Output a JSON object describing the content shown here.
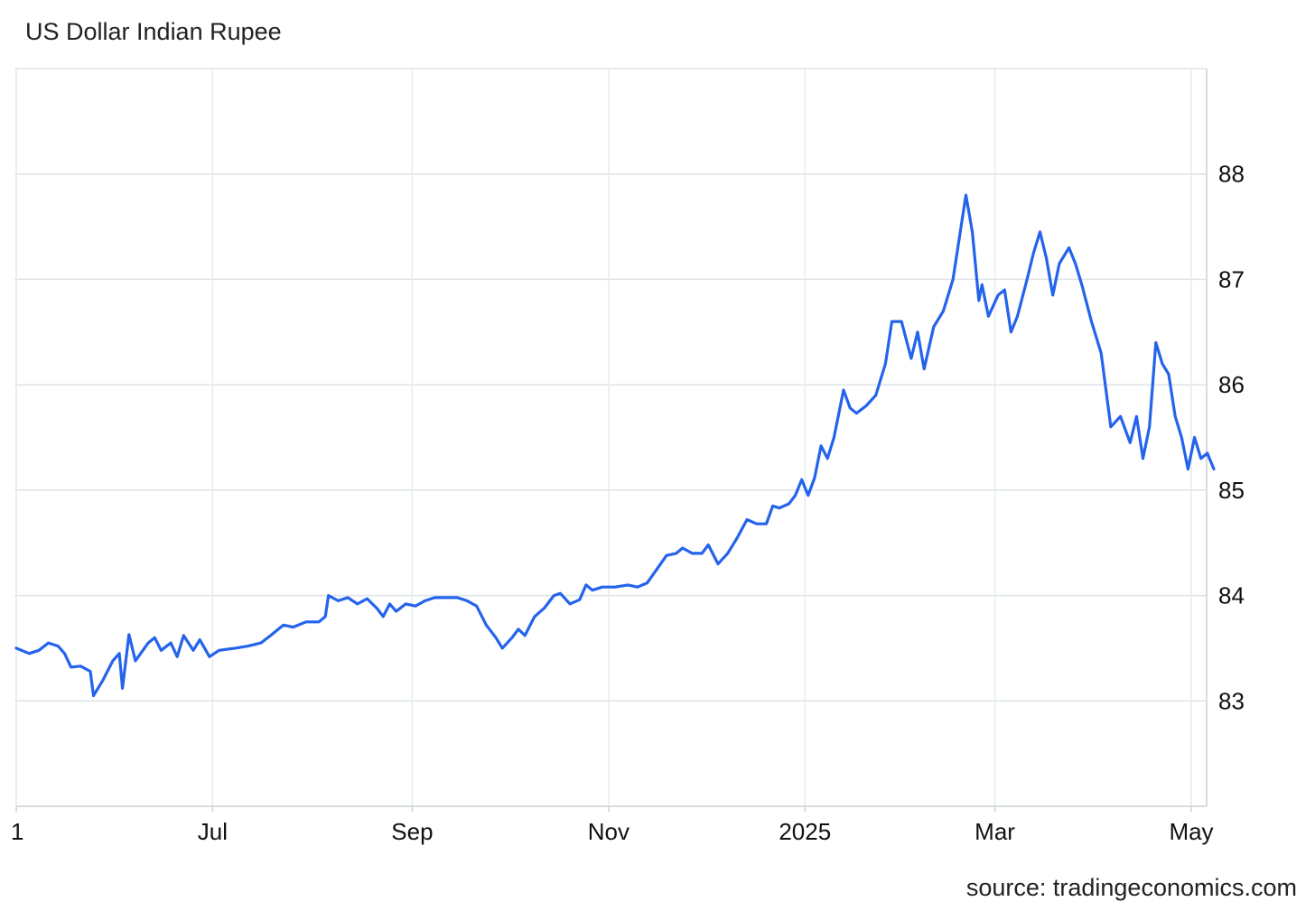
{
  "chart_data": {
    "type": "line",
    "title": "US Dollar Indian Rupee",
    "source": "source: tradingeconomics.com",
    "xlabel": "",
    "ylabel": "",
    "ylim": [
      82,
      89
    ],
    "yticks": [
      83,
      84,
      85,
      86,
      87,
      88
    ],
    "xticks": [
      {
        "label": "1",
        "date": "2024-05-01"
      },
      {
        "label": "Jul",
        "date": "2024-07-01"
      },
      {
        "label": "Sep",
        "date": "2024-09-01"
      },
      {
        "label": "Nov",
        "date": "2024-11-01"
      },
      {
        "label": "2025",
        "date": "2025-01-01"
      },
      {
        "label": "Mar",
        "date": "2025-03-01"
      },
      {
        "label": "May",
        "date": "2025-05-01"
      }
    ],
    "grid": true,
    "line_color": "#2463eb",
    "series": [
      {
        "points": [
          [
            "2024-05-01",
            83.5
          ],
          [
            "2024-05-05",
            83.45
          ],
          [
            "2024-05-08",
            83.48
          ],
          [
            "2024-05-11",
            83.55
          ],
          [
            "2024-05-14",
            83.52
          ],
          [
            "2024-05-16",
            83.45
          ],
          [
            "2024-05-18",
            83.32
          ],
          [
            "2024-05-21",
            83.33
          ],
          [
            "2024-05-24",
            83.28
          ],
          [
            "2024-05-25",
            83.05
          ],
          [
            "2024-05-28",
            83.2
          ],
          [
            "2024-05-31",
            83.38
          ],
          [
            "2024-06-02",
            83.45
          ],
          [
            "2024-06-03",
            83.12
          ],
          [
            "2024-06-05",
            83.63
          ],
          [
            "2024-06-07",
            83.38
          ],
          [
            "2024-06-11",
            83.55
          ],
          [
            "2024-06-13",
            83.6
          ],
          [
            "2024-06-15",
            83.48
          ],
          [
            "2024-06-18",
            83.55
          ],
          [
            "2024-06-20",
            83.42
          ],
          [
            "2024-06-22",
            83.62
          ],
          [
            "2024-06-25",
            83.48
          ],
          [
            "2024-06-27",
            83.58
          ],
          [
            "2024-06-30",
            83.42
          ],
          [
            "2024-07-03",
            83.48
          ],
          [
            "2024-07-08",
            83.5
          ],
          [
            "2024-07-12",
            83.52
          ],
          [
            "2024-07-16",
            83.55
          ],
          [
            "2024-07-19",
            83.62
          ],
          [
            "2024-07-23",
            83.72
          ],
          [
            "2024-07-26",
            83.7
          ],
          [
            "2024-07-30",
            83.75
          ],
          [
            "2024-08-03",
            83.75
          ],
          [
            "2024-08-05",
            83.8
          ],
          [
            "2024-08-06",
            84.0
          ],
          [
            "2024-08-09",
            83.95
          ],
          [
            "2024-08-12",
            83.98
          ],
          [
            "2024-08-15",
            83.92
          ],
          [
            "2024-08-18",
            83.97
          ],
          [
            "2024-08-21",
            83.88
          ],
          [
            "2024-08-23",
            83.8
          ],
          [
            "2024-08-25",
            83.92
          ],
          [
            "2024-08-27",
            83.85
          ],
          [
            "2024-08-30",
            83.92
          ],
          [
            "2024-09-02",
            83.9
          ],
          [
            "2024-09-05",
            83.95
          ],
          [
            "2024-09-08",
            83.98
          ],
          [
            "2024-09-12",
            83.98
          ],
          [
            "2024-09-15",
            83.98
          ],
          [
            "2024-09-18",
            83.95
          ],
          [
            "2024-09-21",
            83.9
          ],
          [
            "2024-09-24",
            83.72
          ],
          [
            "2024-09-27",
            83.6
          ],
          [
            "2024-09-29",
            83.5
          ],
          [
            "2024-10-02",
            83.6
          ],
          [
            "2024-10-04",
            83.68
          ],
          [
            "2024-10-06",
            83.62
          ],
          [
            "2024-10-09",
            83.8
          ],
          [
            "2024-10-12",
            83.88
          ],
          [
            "2024-10-15",
            84.0
          ],
          [
            "2024-10-17",
            84.02
          ],
          [
            "2024-10-20",
            83.92
          ],
          [
            "2024-10-23",
            83.96
          ],
          [
            "2024-10-25",
            84.1
          ],
          [
            "2024-10-27",
            84.05
          ],
          [
            "2024-10-30",
            84.08
          ],
          [
            "2024-11-03",
            84.08
          ],
          [
            "2024-11-07",
            84.1
          ],
          [
            "2024-11-10",
            84.08
          ],
          [
            "2024-11-13",
            84.12
          ],
          [
            "2024-11-16",
            84.25
          ],
          [
            "2024-11-19",
            84.38
          ],
          [
            "2024-11-22",
            84.4
          ],
          [
            "2024-11-24",
            84.45
          ],
          [
            "2024-11-27",
            84.4
          ],
          [
            "2024-11-30",
            84.4
          ],
          [
            "2024-12-02",
            84.48
          ],
          [
            "2024-12-05",
            84.3
          ],
          [
            "2024-12-08",
            84.4
          ],
          [
            "2024-12-11",
            84.55
          ],
          [
            "2024-12-14",
            84.72
          ],
          [
            "2024-12-17",
            84.68
          ],
          [
            "2024-12-20",
            84.68
          ],
          [
            "2024-12-22",
            84.85
          ],
          [
            "2024-12-24",
            84.83
          ],
          [
            "2024-12-27",
            84.87
          ],
          [
            "2024-12-29",
            84.95
          ],
          [
            "2024-12-31",
            85.1
          ],
          [
            "2025-01-02",
            84.95
          ],
          [
            "2025-01-04",
            85.12
          ],
          [
            "2025-01-06",
            85.42
          ],
          [
            "2025-01-08",
            85.3
          ],
          [
            "2025-01-10",
            85.5
          ],
          [
            "2025-01-13",
            85.95
          ],
          [
            "2025-01-15",
            85.78
          ],
          [
            "2025-01-17",
            85.73
          ],
          [
            "2025-01-20",
            85.8
          ],
          [
            "2025-01-23",
            85.9
          ],
          [
            "2025-01-26",
            86.2
          ],
          [
            "2025-01-28",
            86.6
          ],
          [
            "2025-01-31",
            86.6
          ],
          [
            "2025-02-03",
            86.25
          ],
          [
            "2025-02-05",
            86.5
          ],
          [
            "2025-02-07",
            86.15
          ],
          [
            "2025-02-10",
            86.55
          ],
          [
            "2025-02-13",
            86.7
          ],
          [
            "2025-02-16",
            87.0
          ],
          [
            "2025-02-19",
            87.6
          ],
          [
            "2025-02-20",
            87.8
          ],
          [
            "2025-02-22",
            87.45
          ],
          [
            "2025-02-24",
            86.8
          ],
          [
            "2025-02-25",
            86.95
          ],
          [
            "2025-02-27",
            86.65
          ],
          [
            "2025-03-02",
            86.85
          ],
          [
            "2025-03-04",
            86.9
          ],
          [
            "2025-03-06",
            86.5
          ],
          [
            "2025-03-08",
            86.65
          ],
          [
            "2025-03-11",
            87.0
          ],
          [
            "2025-03-13",
            87.25
          ],
          [
            "2025-03-15",
            87.45
          ],
          [
            "2025-03-17",
            87.2
          ],
          [
            "2025-03-19",
            86.85
          ],
          [
            "2025-03-21",
            87.15
          ],
          [
            "2025-03-24",
            87.3
          ],
          [
            "2025-03-26",
            87.15
          ],
          [
            "2025-03-28",
            86.95
          ],
          [
            "2025-03-31",
            86.6
          ],
          [
            "2025-04-03",
            86.3
          ],
          [
            "2025-04-06",
            85.6
          ],
          [
            "2025-04-09",
            85.7
          ],
          [
            "2025-04-12",
            85.45
          ],
          [
            "2025-04-14",
            85.7
          ],
          [
            "2025-04-16",
            85.3
          ],
          [
            "2025-04-18",
            85.6
          ],
          [
            "2025-04-20",
            86.4
          ],
          [
            "2025-04-22",
            86.2
          ],
          [
            "2025-04-24",
            86.1
          ],
          [
            "2025-04-26",
            85.7
          ],
          [
            "2025-04-28",
            85.5
          ],
          [
            "2025-04-30",
            85.2
          ],
          [
            "2025-05-02",
            85.5
          ],
          [
            "2025-05-04",
            85.3
          ],
          [
            "2025-05-06",
            85.35
          ],
          [
            "2025-05-08",
            85.2
          ]
        ]
      }
    ]
  }
}
